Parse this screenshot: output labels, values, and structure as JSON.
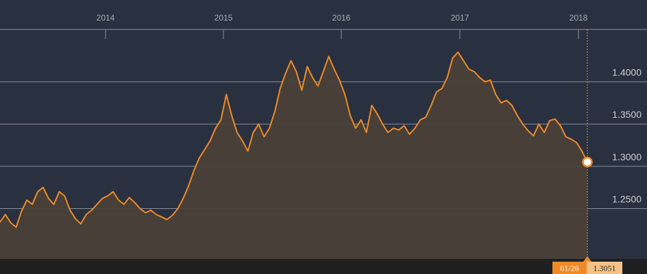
{
  "chart_data": {
    "type": "area",
    "x_ticks": [
      "2014",
      "2015",
      "2016",
      "2017",
      "2018"
    ],
    "y_ticks": [
      "1.4000",
      "1.3500",
      "1.3000",
      "1.2500"
    ],
    "ylim": [
      1.205,
      1.44
    ],
    "grid": true,
    "legend": "none",
    "series": [
      {
        "values": [
          1.234,
          1.243,
          1.233,
          1.228,
          1.247,
          1.26,
          1.255,
          1.27,
          1.275,
          1.262,
          1.255,
          1.27,
          1.265,
          1.248,
          1.238,
          1.232,
          1.243,
          1.248,
          1.255,
          1.262,
          1.265,
          1.27,
          1.26,
          1.255,
          1.263,
          1.257,
          1.25,
          1.245,
          1.248,
          1.243,
          1.24,
          1.237,
          1.242,
          1.25,
          1.262,
          1.277,
          1.295,
          1.31,
          1.32,
          1.33,
          1.345,
          1.355,
          1.385,
          1.36,
          1.34,
          1.33,
          1.318,
          1.34,
          1.35,
          1.335,
          1.345,
          1.365,
          1.392,
          1.41,
          1.425,
          1.412,
          1.39,
          1.418,
          1.405,
          1.395,
          1.412,
          1.43,
          1.415,
          1.402,
          1.385,
          1.36,
          1.345,
          1.355,
          1.34,
          1.372,
          1.362,
          1.35,
          1.34,
          1.345,
          1.343,
          1.348,
          1.338,
          1.345,
          1.355,
          1.358,
          1.372,
          1.388,
          1.392,
          1.405,
          1.428,
          1.435,
          1.425,
          1.415,
          1.412,
          1.405,
          1.4,
          1.402,
          1.385,
          1.375,
          1.378,
          1.372,
          1.36,
          1.35,
          1.342,
          1.336,
          1.35,
          1.34,
          1.354,
          1.356,
          1.348,
          1.335,
          1.332,
          1.328,
          1.318,
          1.305
        ]
      }
    ],
    "tooltip": {
      "date": "01/26",
      "value": "1.3051"
    },
    "colors": {
      "background": "#293140",
      "line": "#f08a27",
      "fill": "#4a4038",
      "grid": "#8b919c",
      "bottom_band": "#1e1f20",
      "tooltip_date_bg": "#f08a27",
      "tooltip_value_bg": "#f3c284"
    }
  }
}
